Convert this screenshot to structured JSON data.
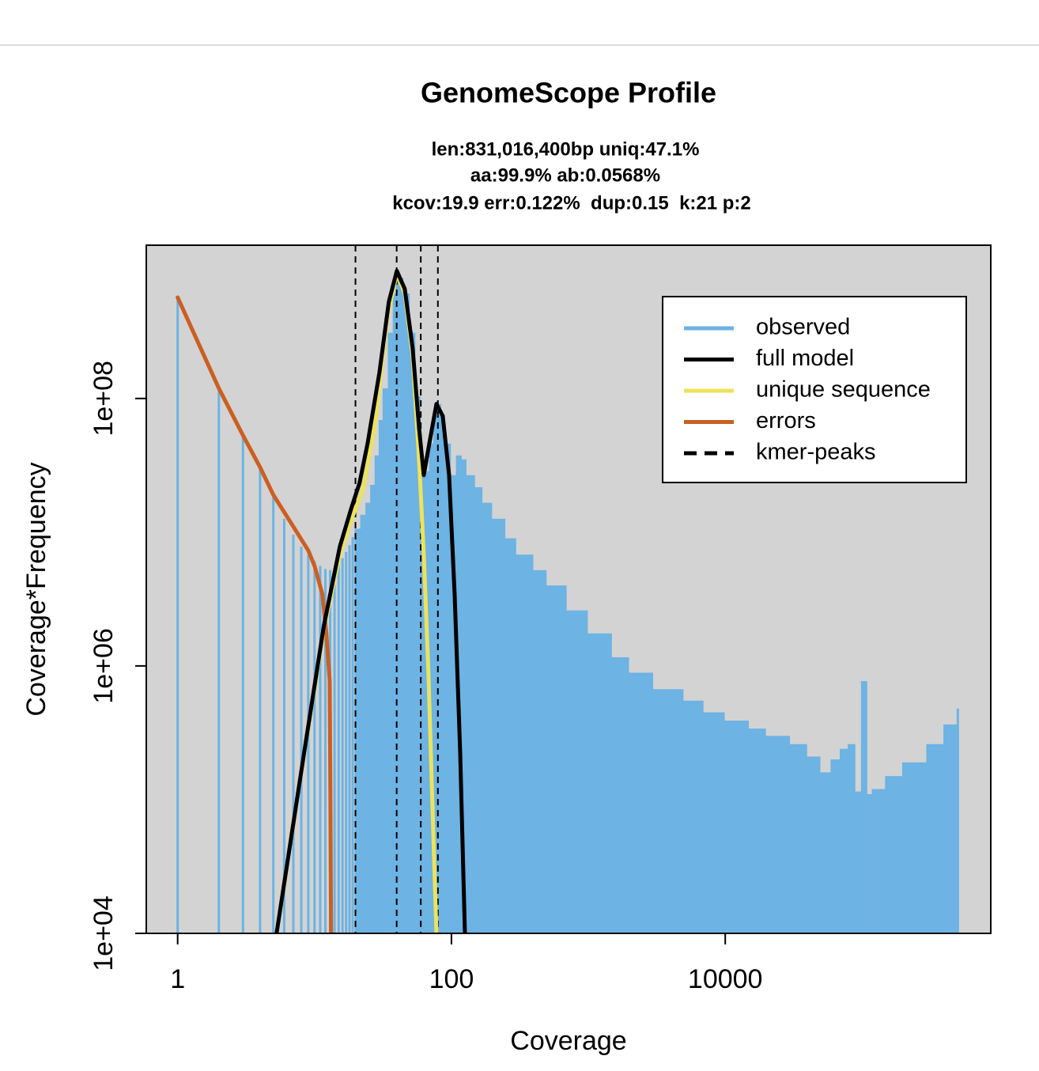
{
  "chart_data": {
    "type": "line",
    "title": "GenomeScope Profile",
    "subtitle": [
      "len:831,016,400bp uniq:47.1%",
      "aa:99.9% ab:0.0568%",
      "kcov:19.9 err:0.122%  dup:0.15  k:21 p:2"
    ],
    "xlabel": "Coverage",
    "ylabel": "Coverage*Frequency",
    "xscale": "log",
    "yscale": "log",
    "xlim": [
      0.59,
      870000
    ],
    "ylim": [
      10000,
      1400000000
    ],
    "xticks": [
      1,
      100,
      10000
    ],
    "yticks": [
      {
        "value": 10000,
        "label": "1e+04"
      },
      {
        "value": 1000000,
        "label": "1e+06"
      },
      {
        "value": 100000000,
        "label": "1e+08"
      }
    ],
    "background": "#d3d3d3",
    "legend": "top right",
    "series": [
      {
        "name": "observed",
        "kind": "spikes",
        "color": "#6db3e3",
        "x": [
          1,
          2,
          3,
          4,
          5,
          6,
          7,
          8,
          9,
          10,
          11,
          12,
          13,
          14,
          15,
          16,
          17,
          18,
          19,
          20,
          22,
          24,
          26,
          28,
          30,
          32,
          35,
          38,
          40,
          42,
          45,
          50,
          55,
          60,
          65,
          70,
          75,
          80,
          85,
          90,
          100,
          110,
          120,
          130,
          150,
          170,
          200,
          250,
          300,
          400,
          500,
          700,
          1000,
          1500,
          2000,
          3000,
          5000,
          7000,
          10000,
          15000,
          20000,
          30000,
          40000,
          50000,
          60000,
          70000,
          80000,
          90000,
          100000,
          110000,
          120000,
          150000,
          200000,
          300000,
          400000,
          500000
        ],
        "values": [
          570000000,
          119000000,
          52700000,
          30600000,
          19000000,
          12600000,
          9600000,
          7800000,
          6800000,
          6100000,
          5600000,
          5300000,
          5200000,
          5300000,
          5800000,
          6400000,
          7100000,
          8000000,
          9200000,
          10600000,
          13500000,
          16600000,
          22600000,
          37500000,
          69000000,
          119000000,
          310000000,
          610000000,
          860000000,
          800000000,
          610000000,
          310000000,
          104000000,
          30600000,
          28600000,
          46000000,
          74000000,
          91000000,
          74000000,
          46000000,
          26700000,
          37500000,
          35000000,
          26700000,
          21700000,
          16600000,
          12600000,
          9000000,
          6800000,
          5200000,
          4000000,
          2600000,
          1750000,
          1160000,
          890000,
          670000,
          550000,
          450000,
          390000,
          340000,
          300000,
          260000,
          210000,
          160000,
          200000,
          240000,
          260000,
          115000,
          770000,
          110000,
          120000,
          150000,
          190000,
          260000,
          365000,
          480000
        ]
      },
      {
        "name": "full model",
        "kind": "line",
        "color": "#000000",
        "x": [
          5.28,
          8.4,
          11.7,
          15.3,
          18.7,
          21.3,
          24.4,
          29.8,
          34.9,
          39.9,
          45.6,
          52.1,
          58.0,
          62.8,
          68.9,
          77.7,
          86.4,
          96.1,
          105.5,
          115.8,
          125.4
        ],
        "values": [
          10000,
          226000,
          2000000,
          7800000,
          15500000,
          23300000,
          46000000,
          157000000,
          530000000,
          900000000,
          660000000,
          236000000,
          60000000,
          26700000,
          46000000,
          91000000,
          74000000,
          26700000,
          3450000,
          226000,
          10000
        ]
      },
      {
        "name": "unique sequence",
        "kind": "line",
        "color": "#ede35a",
        "x": [
          5.28,
          8.4,
          11.7,
          15.3,
          18.7,
          22.8,
          27.9,
          34.0,
          39.9,
          45.6,
          52.1,
          58.0,
          62.8,
          67.9,
          73.6,
          77.7
        ],
        "values": [
          10000,
          226000,
          1870000,
          6800000,
          12600000,
          21700000,
          69000000,
          407000000,
          860000000,
          610000000,
          206000000,
          35000000,
          6800000,
          890000,
          58000,
          10000
        ]
      },
      {
        "name": "errors",
        "kind": "line",
        "color": "#cb5f22",
        "x": [
          1,
          2,
          3,
          4,
          5,
          7,
          9,
          10,
          11.4,
          12.2,
          12.9,
          13.05,
          13.2
        ],
        "values": [
          570000000,
          119000000,
          53000000,
          30600000,
          19000000,
          11000000,
          7300000,
          5600000,
          3450000,
          1750000,
          770000,
          115000,
          10000
        ]
      },
      {
        "name": "kmer-peaks",
        "kind": "vlines",
        "color": "#000000",
        "x": [
          19.9,
          39.8,
          59.7,
          79.6
        ]
      }
    ]
  }
}
